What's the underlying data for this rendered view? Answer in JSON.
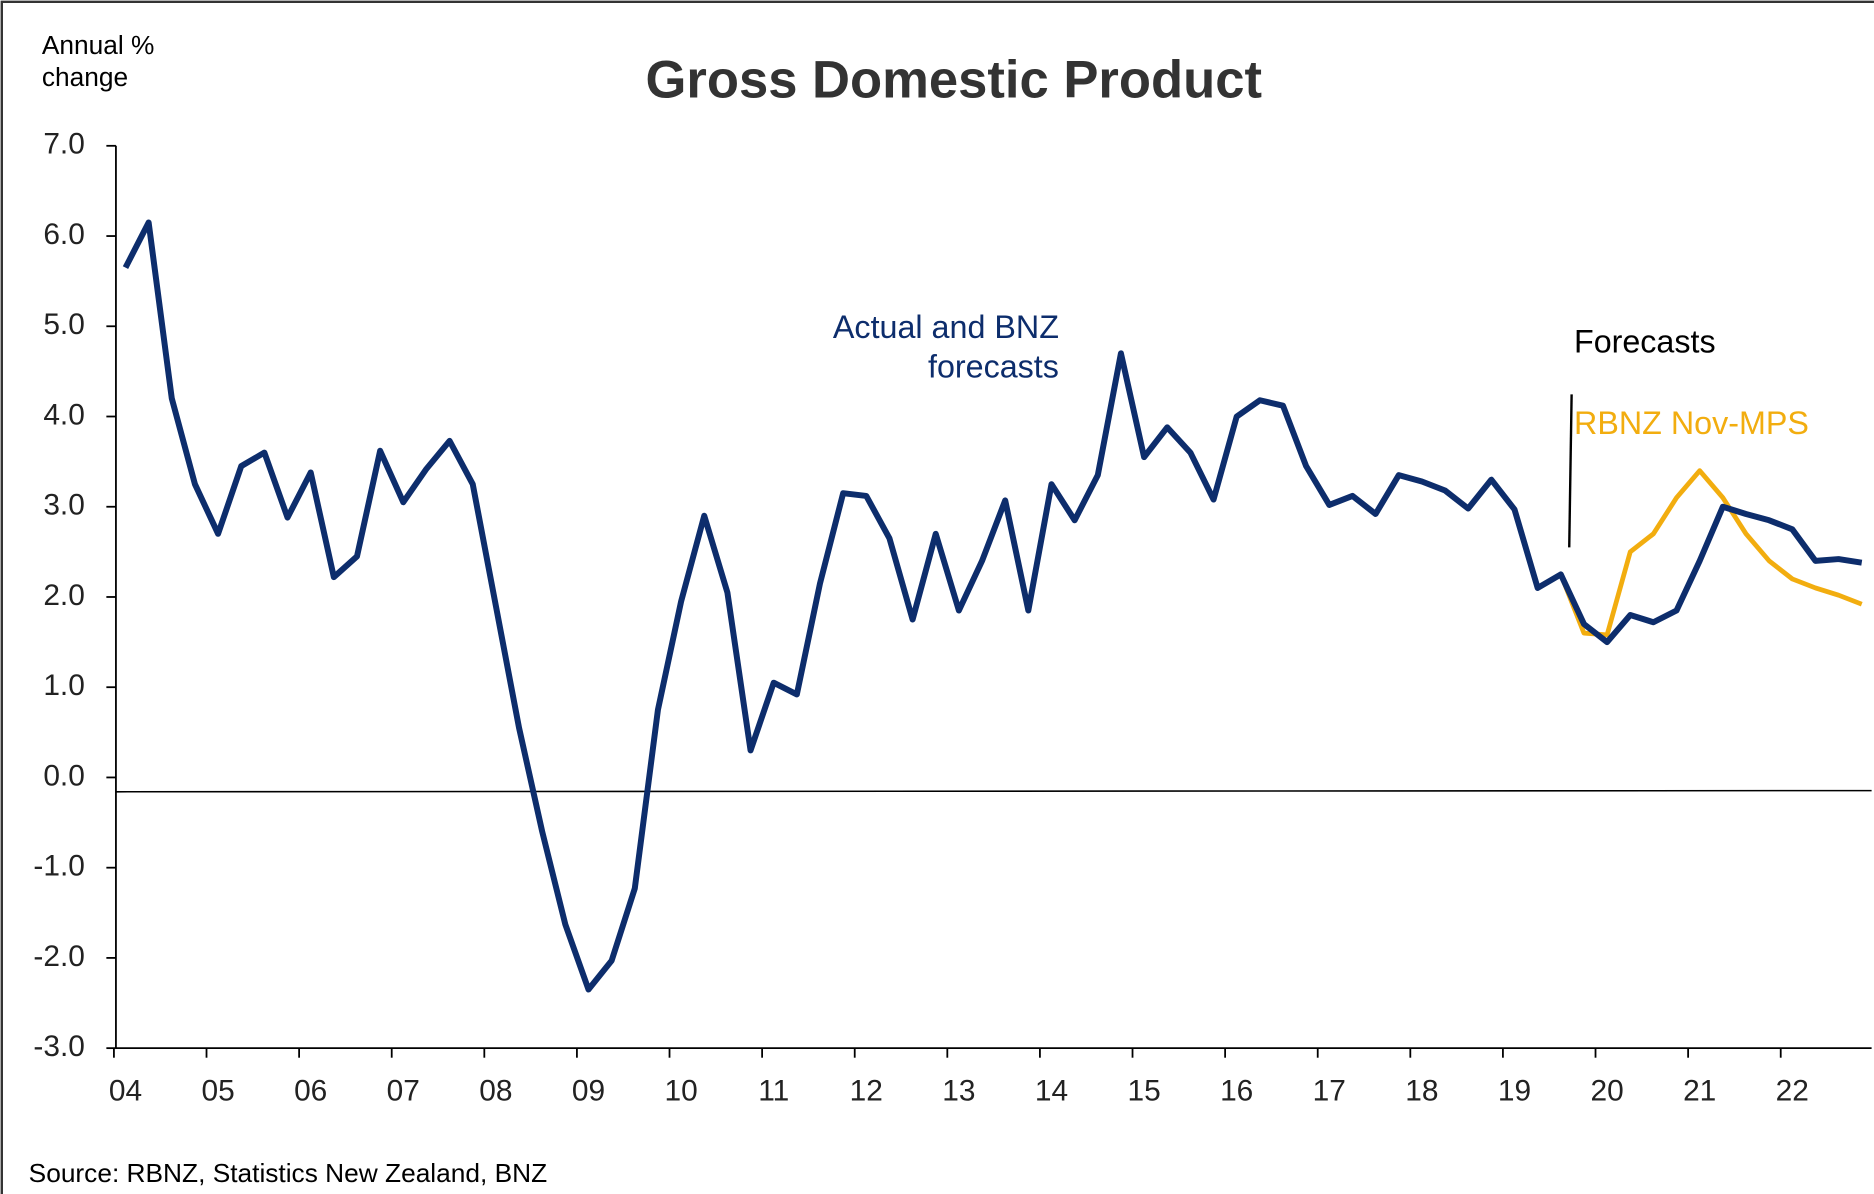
{
  "chart_data": {
    "type": "line",
    "title": "Gross Domestic Product",
    "y_axis_label": "Annual % change",
    "annotations": [
      "Forecasts"
    ],
    "source": "Source: RBNZ, Statistics New Zealand,  BNZ",
    "categories": [
      "04",
      null,
      null,
      null,
      "05",
      null,
      null,
      null,
      "06",
      null,
      null,
      null,
      "07",
      null,
      null,
      null,
      "08",
      null,
      null,
      null,
      "09",
      null,
      null,
      null,
      "10",
      null,
      null,
      null,
      "11",
      null,
      null,
      null,
      "12",
      null,
      null,
      null,
      "13",
      null,
      null,
      null,
      "14",
      null,
      null,
      null,
      "15",
      null,
      null,
      null,
      "16",
      null,
      null,
      null,
      "17",
      null,
      null,
      null,
      "18",
      null,
      null,
      null,
      "19",
      null,
      null,
      null,
      "20",
      null,
      null,
      null,
      "21",
      null,
      null,
      null,
      "22",
      null,
      null,
      null
    ],
    "series": [
      {
        "name": "Actual and BNZ forecasts",
        "color": "#0d2d6c",
        "values": [
          5.65,
          6.15,
          4.2,
          3.25,
          2.7,
          3.45,
          3.6,
          2.88,
          3.38,
          2.22,
          2.45,
          3.62,
          3.05,
          3.42,
          3.73,
          3.25,
          1.9,
          0.55,
          -0.6,
          -1.63,
          -2.35,
          -2.03,
          -1.23,
          0.75,
          1.95,
          2.9,
          2.05,
          0.3,
          1.05,
          0.92,
          2.15,
          3.15,
          3.12,
          2.65,
          1.75,
          2.7,
          1.85,
          2.4,
          3.07,
          1.85,
          3.25,
          2.85,
          3.35,
          4.7,
          3.55,
          3.88,
          3.6,
          3.08,
          4.0,
          4.18,
          4.12,
          3.45,
          3.02,
          3.12,
          2.92,
          3.35,
          3.28,
          3.18,
          2.98,
          3.3,
          2.97,
          2.1,
          2.25,
          1.7,
          1.5,
          1.8,
          1.72,
          1.85,
          2.4,
          3.0,
          2.92,
          2.85,
          2.75,
          2.4,
          2.42,
          2.38
        ]
      },
      {
        "name": "RBNZ Nov-MPS",
        "color": "#f2ad0f",
        "values": [
          null,
          null,
          null,
          null,
          null,
          null,
          null,
          null,
          null,
          null,
          null,
          null,
          null,
          null,
          null,
          null,
          null,
          null,
          null,
          null,
          null,
          null,
          null,
          null,
          null,
          null,
          null,
          null,
          null,
          null,
          null,
          null,
          null,
          null,
          null,
          null,
          null,
          null,
          null,
          null,
          null,
          null,
          null,
          null,
          null,
          null,
          null,
          null,
          null,
          null,
          null,
          null,
          null,
          null,
          null,
          null,
          null,
          null,
          null,
          null,
          null,
          null,
          2.25,
          1.6,
          1.58,
          2.5,
          2.7,
          3.1,
          3.4,
          3.1,
          2.7,
          2.4,
          2.2,
          2.1,
          2.02,
          1.92
        ]
      }
    ],
    "ylim": [
      -3,
      7
    ],
    "yticks": [
      {
        "value": -3,
        "label": "-3.0"
      },
      {
        "value": -2,
        "label": "-2.0"
      },
      {
        "value": -1,
        "label": "-1.0"
      },
      {
        "value": 0,
        "label": "0.0"
      },
      {
        "value": 1,
        "label": "1.0"
      },
      {
        "value": 2,
        "label": "2.0"
      },
      {
        "value": 3,
        "label": "3.0"
      },
      {
        "value": 4,
        "label": "4.0"
      },
      {
        "value": 5,
        "label": "5.0"
      },
      {
        "value": 6,
        "label": "6.0"
      },
      {
        "value": 7,
        "label": "7.0"
      }
    ]
  }
}
